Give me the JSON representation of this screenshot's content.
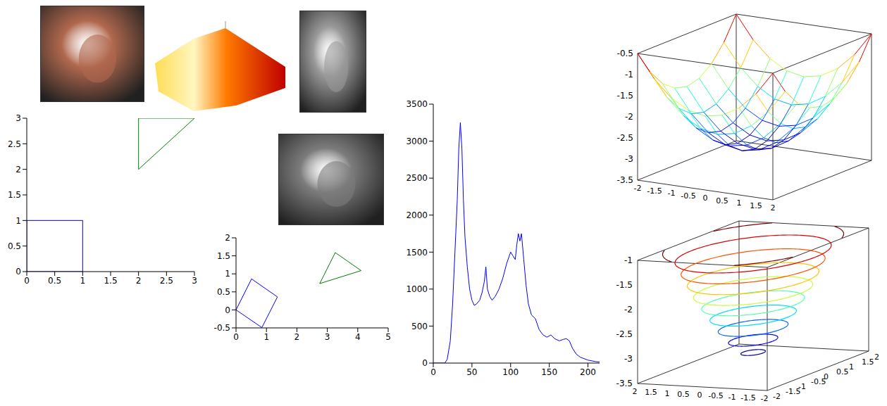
{
  "chart_data": [
    {
      "type": "image",
      "color": "#b0684e"
    },
    {
      "type": "shaded_surface",
      "color": "#ff7a00"
    },
    {
      "type": "image",
      "color": "#9a9a9a"
    },
    {
      "type": "image",
      "color": "#7c7c7c"
    },
    {
      "type": "line",
      "xlim": [
        0,
        3
      ],
      "ylim": [
        0,
        3
      ],
      "xticks": [
        0,
        0.5,
        1,
        1.5,
        2,
        2.5,
        3
      ],
      "yticks": [
        0,
        0.5,
        1,
        1.5,
        2,
        2.5,
        3
      ],
      "series": [
        {
          "color": "#0000ff",
          "x": [
            0,
            1,
            1,
            0,
            0
          ],
          "values": [
            0,
            0,
            1,
            1,
            0
          ]
        },
        {
          "color": "#008000",
          "x": [
            2,
            3,
            2,
            2
          ],
          "values": [
            3,
            3,
            2,
            3
          ]
        }
      ]
    },
    {
      "type": "line",
      "xlim": [
        0,
        5
      ],
      "ylim": [
        -0.5,
        2
      ],
      "xticks": [
        0,
        1,
        2,
        3,
        4,
        5
      ],
      "yticks": [
        -0.5,
        0,
        0.5,
        1,
        1.5,
        2
      ],
      "series": [
        {
          "color": "#0000ff",
          "x": [
            0,
            0.51,
            1.36,
            0.85,
            0
          ],
          "values": [
            0,
            0.86,
            0.36,
            -0.49,
            0
          ]
        },
        {
          "color": "#008000",
          "x": [
            2.75,
            3.26,
            4.11,
            2.75
          ],
          "values": [
            0.73,
            1.59,
            1.09,
            0.73
          ]
        }
      ]
    },
    {
      "type": "line",
      "xlim": [
        0,
        215
      ],
      "ylim": [
        0,
        3500
      ],
      "xticks": [
        0,
        50,
        100,
        150,
        200
      ],
      "yticks": [
        0,
        500,
        1000,
        1500,
        2000,
        2500,
        3000,
        3500
      ],
      "series": [
        {
          "color": "#0000ff",
          "x": [
            0,
            15,
            18,
            22,
            25,
            28,
            31,
            33,
            35,
            37,
            39,
            41,
            44,
            47,
            50,
            53,
            56,
            60,
            63,
            66,
            68,
            70,
            73,
            76,
            80,
            85,
            90,
            95,
            100,
            103,
            106,
            108,
            110,
            112,
            114,
            117,
            120,
            123,
            127,
            132,
            137,
            142,
            147,
            152,
            157,
            163,
            168,
            172,
            176,
            180,
            185,
            190,
            195,
            200,
            205,
            210,
            215
          ],
          "values": [
            0,
            0,
            50,
            300,
            800,
            1500,
            2200,
            2900,
            3250,
            2900,
            2200,
            1700,
            1300,
            1000,
            850,
            780,
            800,
            850,
            950,
            1100,
            1300,
            1000,
            900,
            850,
            900,
            1000,
            1150,
            1350,
            1500,
            1450,
            1400,
            1600,
            1750,
            1650,
            1750,
            1400,
            1050,
            800,
            650,
            600,
            450,
            380,
            350,
            380,
            330,
            300,
            320,
            330,
            300,
            200,
            120,
            80,
            60,
            40,
            30,
            20,
            15
          ]
        }
      ]
    },
    {
      "type": "surface",
      "xlim": [
        -2,
        2
      ],
      "ylim": [
        -2,
        2
      ],
      "zlim": [
        -3.5,
        -0.5
      ],
      "xticks": [
        -2,
        -1.5,
        -1,
        -0.5,
        0,
        0.5,
        1,
        1.5,
        2
      ],
      "zticks": [
        -3.5,
        -3,
        -2.5,
        -2,
        -1.5,
        -1,
        -0.5
      ],
      "x": [
        -2,
        -1.5,
        -1,
        -0.5,
        0,
        0.5,
        1,
        1.5,
        2
      ],
      "y": [
        -2,
        -1.5,
        -1,
        -0.5,
        0,
        0.5,
        1,
        1.5,
        2
      ],
      "z": [
        [
          -0.5,
          -1.05,
          -1.44,
          -1.67,
          -1.75,
          -1.67,
          -1.44,
          -1.05,
          -0.5
        ],
        [
          -1.05,
          -1.59,
          -1.98,
          -2.22,
          -2.3,
          -2.22,
          -1.98,
          -1.59,
          -1.05
        ],
        [
          -1.44,
          -1.98,
          -2.38,
          -2.61,
          -2.69,
          -2.61,
          -2.38,
          -1.98,
          -1.44
        ],
        [
          -1.67,
          -2.22,
          -2.61,
          -2.84,
          -2.92,
          -2.84,
          -2.61,
          -2.22,
          -1.67
        ],
        [
          -1.75,
          -2.3,
          -2.69,
          -2.92,
          -3,
          -2.92,
          -2.69,
          -2.3,
          -1.75
        ],
        [
          -1.67,
          -2.22,
          -2.61,
          -2.84,
          -2.92,
          -2.84,
          -2.61,
          -2.22,
          -1.67
        ],
        [
          -1.44,
          -1.98,
          -2.38,
          -2.61,
          -2.69,
          -2.61,
          -2.38,
          -1.98,
          -1.44
        ],
        [
          -1.05,
          -1.59,
          -1.98,
          -2.22,
          -2.3,
          -2.22,
          -1.98,
          -1.59,
          -1.05
        ],
        [
          -0.5,
          -1.05,
          -1.44,
          -1.67,
          -1.75,
          -1.67,
          -1.44,
          -1.05,
          -0.5
        ]
      ]
    },
    {
      "type": "contour3d",
      "xlim": [
        -2,
        2
      ],
      "ylim": [
        -2,
        2
      ],
      "zlim": [
        -3.5,
        -1
      ],
      "xticks": [
        -2,
        -1.5,
        -1,
        -0.5,
        0,
        0.5,
        1,
        1.5,
        2
      ],
      "yticks": [
        -2,
        -1.5,
        -1,
        -0.5,
        0,
        0.5,
        1,
        1.5,
        2
      ],
      "zticks": [
        -3.5,
        -3,
        -2.5,
        -2,
        -1.5,
        -1
      ],
      "levels": [
        -3.2,
        -2.95,
        -2.7,
        -2.45,
        -2.2,
        -1.95,
        -1.7,
        -1.45,
        -1.2,
        -1
      ],
      "radii": [
        0.3,
        0.6,
        0.85,
        1.05,
        1.25,
        1.45,
        1.6,
        1.75,
        1.9,
        2.2
      ]
    }
  ]
}
